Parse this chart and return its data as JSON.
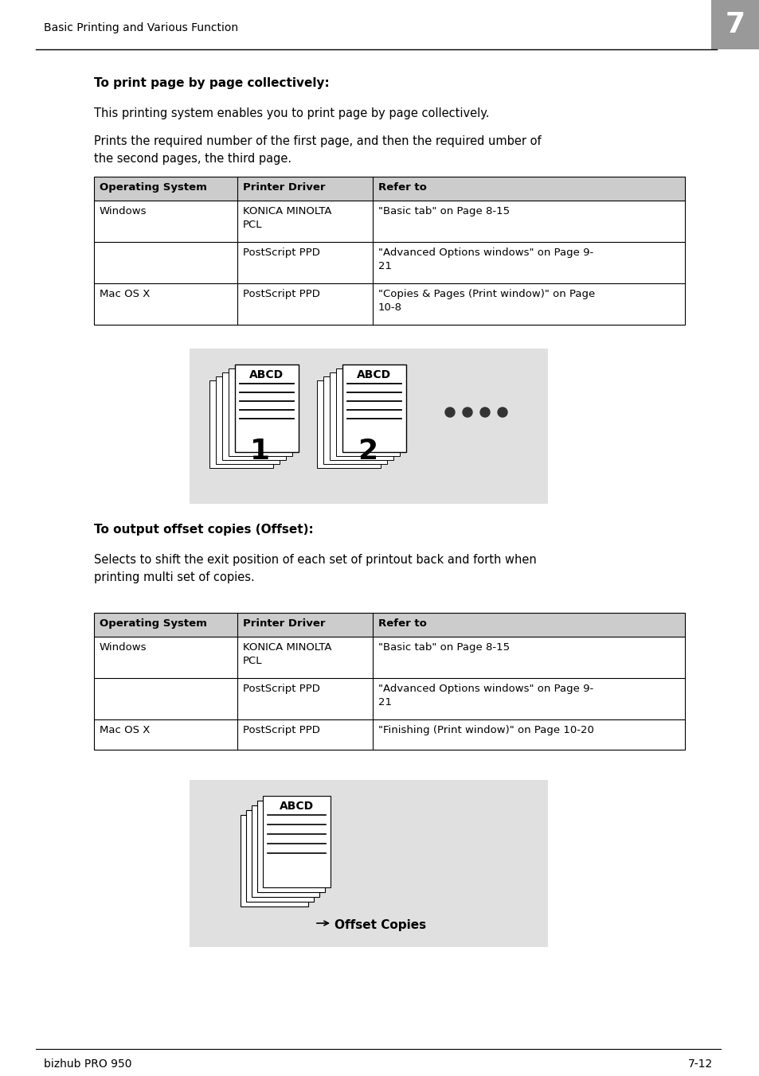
{
  "bg_color": "#ffffff",
  "header_text": "Basic Printing and Various Function",
  "chapter_num": "7",
  "chapter_bg": "#999999",
  "footer_left": "bizhub PRO 950",
  "footer_right": "7-12",
  "section1_title": "To print page by page collectively:",
  "section1_para1": "This printing system enables you to print page by page collectively.",
  "section1_para2": "Prints the required number of the first page, and then the required umber of\nthe second pages, the third page.",
  "table1_headers": [
    "Operating System",
    "Printer Driver",
    "Refer to"
  ],
  "table1_rows": [
    [
      "Windows",
      "KONICA MINOLTA\nPCL",
      "\"Basic tab\" on Page 8-15"
    ],
    [
      "",
      "PostScript PPD",
      "\"Advanced Options windows\" on Page 9-\n21"
    ],
    [
      "Mac OS X",
      "PostScript PPD",
      "\"Copies & Pages (Print window)\" on Page\n10-8"
    ]
  ],
  "table_header_bg": "#cccccc",
  "section2_title": "To output offset copies (Offset):",
  "section2_para1": "Selects to shift the exit position of each set of printout back and forth when\nprinting multi set of copies.",
  "table2_headers": [
    "Operating System",
    "Printer Driver",
    "Refer to"
  ],
  "table2_rows": [
    [
      "Windows",
      "KONICA MINOLTA\nPCL",
      "\"Basic tab\" on Page 8-15"
    ],
    [
      "",
      "PostScript PPD",
      "\"Advanced Options windows\" on Page 9-\n21"
    ],
    [
      "Mac OS X",
      "PostScript PPD",
      "\"Finishing (Print window)\" on Page 10-20"
    ]
  ],
  "diagram_bg": "#e0e0e0",
  "offset_label": "Offset Copies",
  "page_label1": "ABCD",
  "page_label2": "ABCD",
  "page_num1": "1",
  "page_num2": "2"
}
